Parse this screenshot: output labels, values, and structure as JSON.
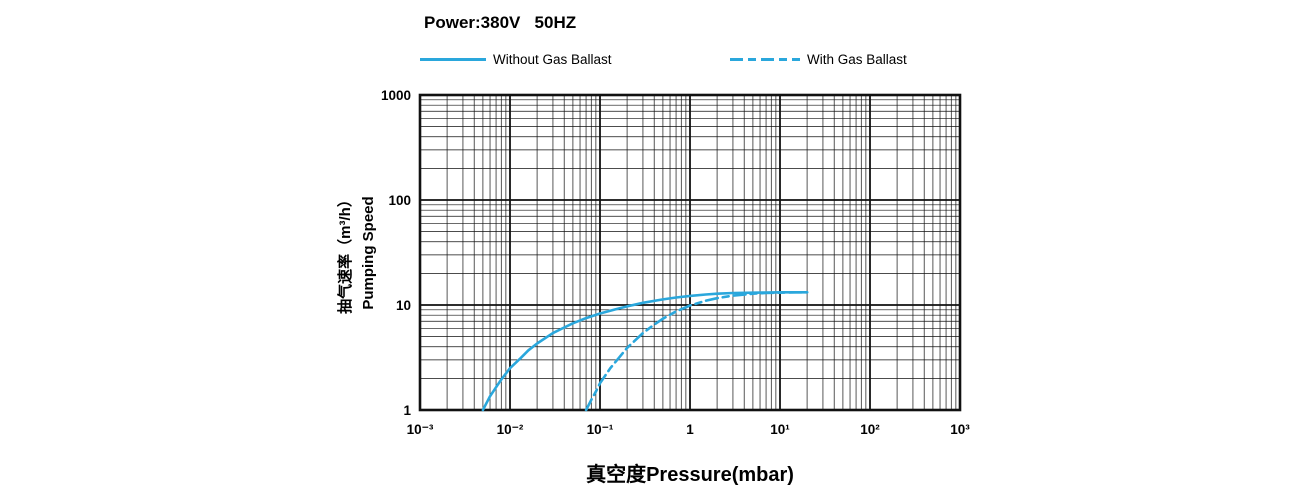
{
  "header": {
    "title": "Power:380V   50HZ"
  },
  "legend": {
    "items": [
      {
        "label": "Without Gas Ballast",
        "style": "solid"
      },
      {
        "label": "With Gas Ballast",
        "style": "dashed"
      }
    ]
  },
  "chart_data": {
    "type": "line",
    "title": "Power:380V   50HZ",
    "x_scale": "log",
    "y_scale": "log",
    "xlim": [
      0.001,
      1000
    ],
    "ylim": [
      1,
      1000
    ],
    "x_tick_labels": [
      "10⁻³",
      "10⁻²",
      "10⁻¹",
      "1",
      "10¹",
      "10²",
      "10³"
    ],
    "y_tick_labels": [
      "1",
      "10",
      "100",
      "1000"
    ],
    "xlabel": "真空度Pressure(mbar)",
    "ylabel_line1": "抽气速率（m³/h）",
    "ylabel_line2": "Pumping Speed",
    "line_color": "#2aa7dc",
    "grid": true,
    "legend_position": "top",
    "series": [
      {
        "name": "Without Gas Ballast",
        "style": "solid",
        "points": [
          [
            0.005,
            1
          ],
          [
            0.006,
            1.35
          ],
          [
            0.007,
            1.65
          ],
          [
            0.008,
            1.95
          ],
          [
            0.01,
            2.5
          ],
          [
            0.013,
            3.1
          ],
          [
            0.016,
            3.7
          ],
          [
            0.02,
            4.3
          ],
          [
            0.03,
            5.4
          ],
          [
            0.04,
            6.1
          ],
          [
            0.05,
            6.7
          ],
          [
            0.07,
            7.5
          ],
          [
            0.1,
            8.3
          ],
          [
            0.15,
            9.1
          ],
          [
            0.2,
            9.7
          ],
          [
            0.3,
            10.5
          ],
          [
            0.5,
            11.3
          ],
          [
            0.7,
            11.8
          ],
          [
            1,
            12.2
          ],
          [
            1.5,
            12.6
          ],
          [
            2,
            12.8
          ],
          [
            3,
            13.0
          ],
          [
            5,
            13.1
          ],
          [
            7,
            13.15
          ],
          [
            10,
            13.2
          ],
          [
            15,
            13.2
          ],
          [
            20,
            13.2
          ]
        ]
      },
      {
        "name": "With Gas Ballast",
        "style": "dashed",
        "points": [
          [
            0.07,
            1
          ],
          [
            0.08,
            1.25
          ],
          [
            0.09,
            1.5
          ],
          [
            0.1,
            1.8
          ],
          [
            0.13,
            2.5
          ],
          [
            0.16,
            3.1
          ],
          [
            0.2,
            3.9
          ],
          [
            0.3,
            5.4
          ],
          [
            0.4,
            6.5
          ],
          [
            0.5,
            7.4
          ],
          [
            0.7,
            8.7
          ],
          [
            1,
            9.9
          ],
          [
            1.5,
            11.0
          ],
          [
            2,
            11.6
          ],
          [
            3,
            12.3
          ],
          [
            5,
            12.8
          ],
          [
            7,
            13.0
          ],
          [
            10,
            13.1
          ],
          [
            15,
            13.2
          ],
          [
            20,
            13.2
          ]
        ]
      }
    ]
  }
}
